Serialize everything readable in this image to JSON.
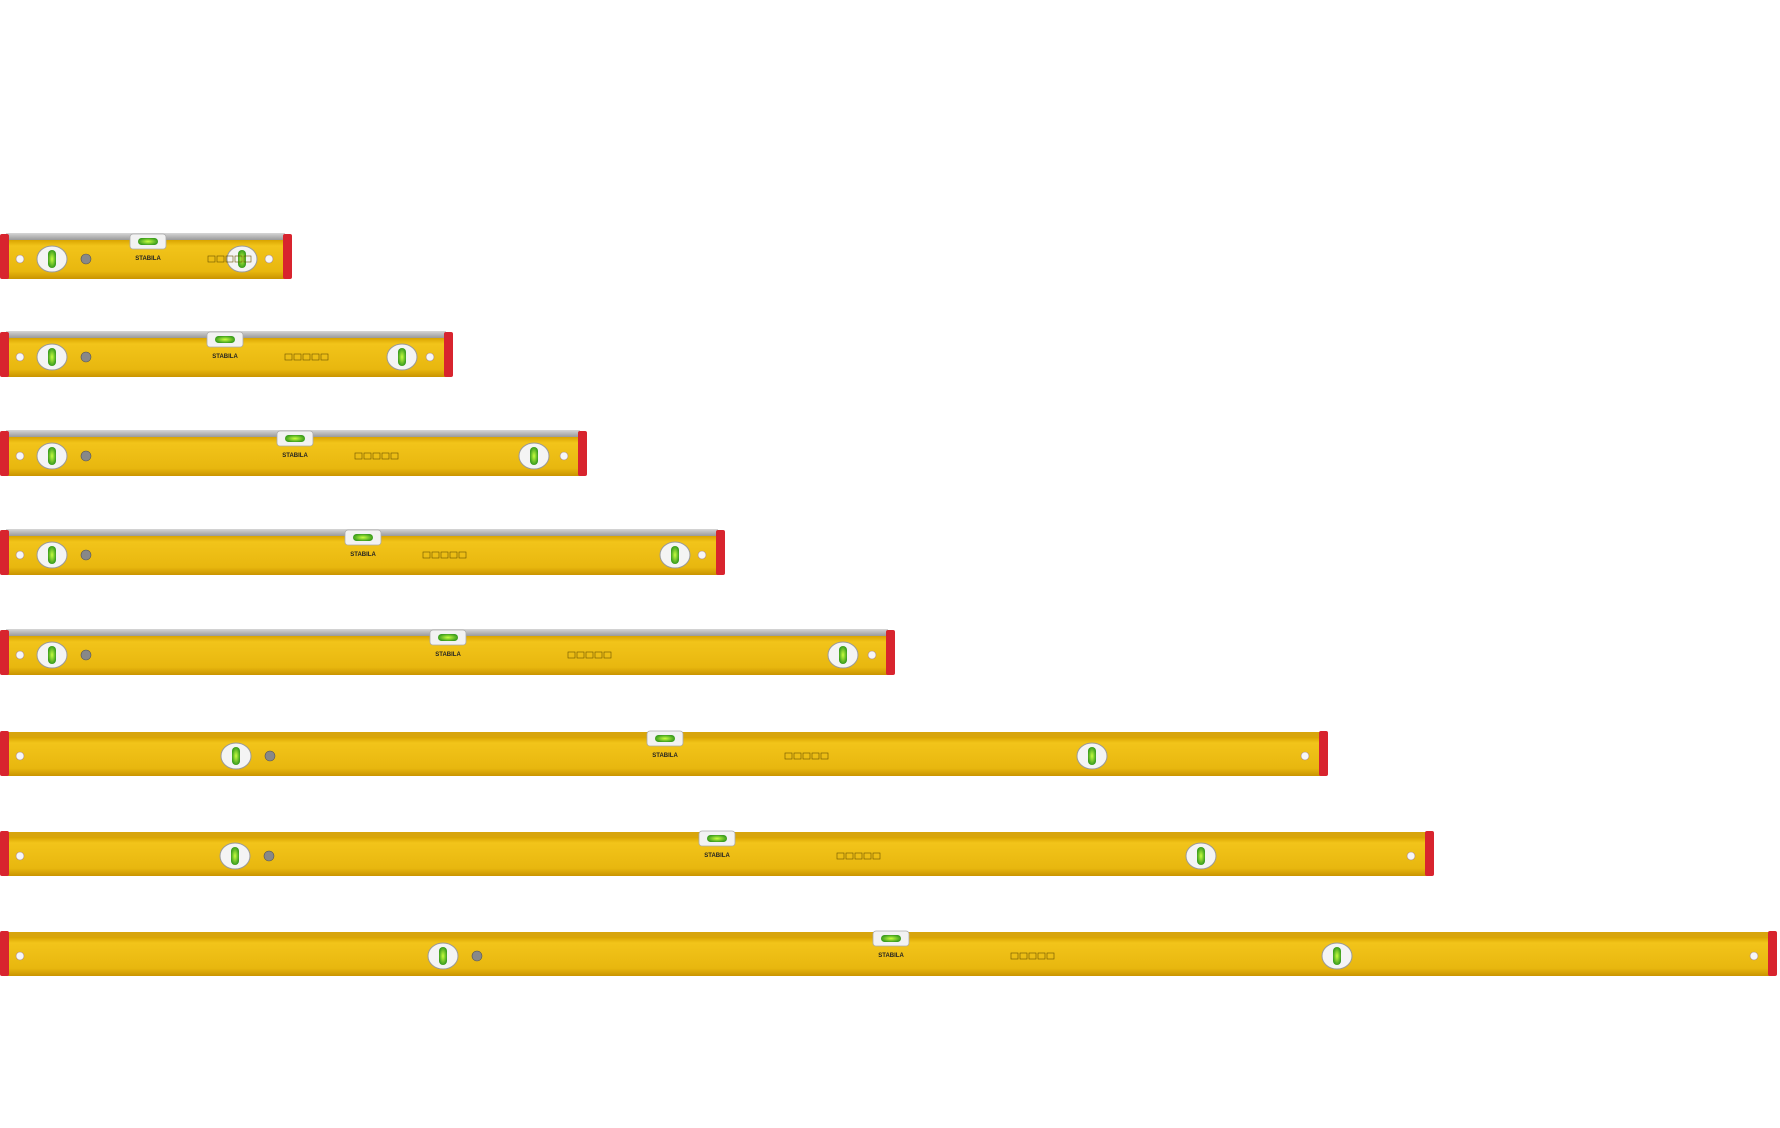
{
  "levels": [
    {
      "brand": "STABILA"
    },
    {
      "brand": "STABILA"
    },
    {
      "brand": "STABILA"
    },
    {
      "brand": "STABILA"
    },
    {
      "brand": "STABILA"
    },
    {
      "brand": "STABILA"
    },
    {
      "brand": "STABILA"
    },
    {
      "brand": "STABILA"
    }
  ]
}
